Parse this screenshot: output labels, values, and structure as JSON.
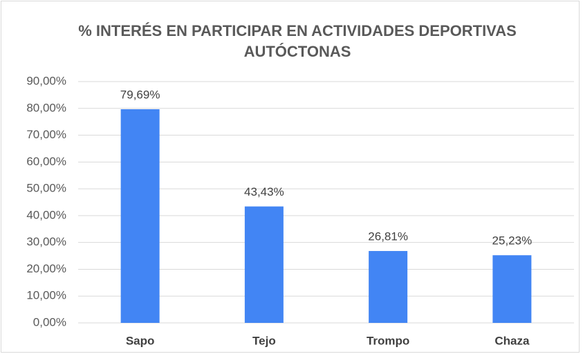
{
  "chart_data": {
    "type": "bar",
    "title": "% INTERÉS EN PARTICIPAR EN ACTIVIDADES DEPORTIVAS AUTÓCTONAS",
    "categories": [
      "Sapo",
      "Tejo",
      "Trompo",
      "Chaza"
    ],
    "values": [
      79.69,
      43.43,
      26.81,
      25.23
    ],
    "value_labels": [
      "79,69%",
      "43,43%",
      "26,81%",
      "25,23%"
    ],
    "color": "#4285f4",
    "ylim": [
      0,
      90
    ],
    "yticks": [
      {
        "value": 0,
        "label": "0,00%"
      },
      {
        "value": 10,
        "label": "10,00%"
      },
      {
        "value": 20,
        "label": "20,00%"
      },
      {
        "value": 30,
        "label": "30,00%"
      },
      {
        "value": 40,
        "label": "40,00%"
      },
      {
        "value": 50,
        "label": "50,00%"
      },
      {
        "value": 60,
        "label": "60,00%"
      },
      {
        "value": 70,
        "label": "70,00%"
      },
      {
        "value": 80,
        "label": "80,00%"
      },
      {
        "value": 90,
        "label": "90,00%"
      }
    ],
    "grid": true
  }
}
